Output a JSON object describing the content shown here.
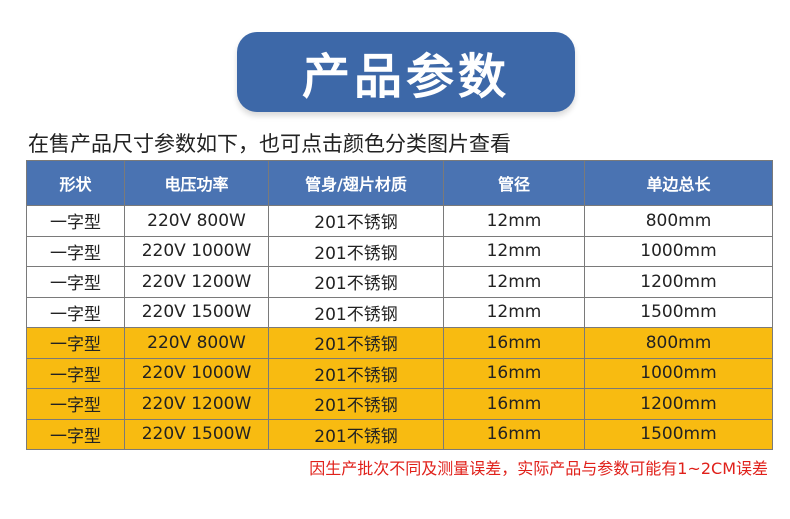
{
  "title": "产品参数",
  "subtitle": "在售产品尺寸参数如下，也可点击颜色分类图片查看",
  "table": {
    "headers": [
      "形状",
      "电压功率",
      "管身/翅片材质",
      "管径",
      "单边总长"
    ],
    "rows": [
      {
        "shape": "一字型",
        "power": "220V 800W",
        "material": "201不锈钢",
        "diameter": "12mm",
        "length": "800mm",
        "highlight": false
      },
      {
        "shape": "一字型",
        "power": "220V 1000W",
        "material": "201不锈钢",
        "diameter": "12mm",
        "length": "1000mm",
        "highlight": false
      },
      {
        "shape": "一字型",
        "power": "220V 1200W",
        "material": "201不锈钢",
        "diameter": "12mm",
        "length": "1200mm",
        "highlight": false
      },
      {
        "shape": "一字型",
        "power": "220V 1500W",
        "material": "201不锈钢",
        "diameter": "12mm",
        "length": "1500mm",
        "highlight": false
      },
      {
        "shape": "一字型",
        "power": "220V 800W",
        "material": "201不锈钢",
        "diameter": "16mm",
        "length": "800mm",
        "highlight": true
      },
      {
        "shape": "一字型",
        "power": "220V 1000W",
        "material": "201不锈钢",
        "diameter": "16mm",
        "length": "1000mm",
        "highlight": true
      },
      {
        "shape": "一字型",
        "power": "220V 1200W",
        "material": "201不锈钢",
        "diameter": "16mm",
        "length": "1200mm",
        "highlight": true
      },
      {
        "shape": "一字型",
        "power": "220V 1500W",
        "material": "201不锈钢",
        "diameter": "16mm",
        "length": "1500mm",
        "highlight": true
      }
    ]
  },
  "footnote": "因生产批次不同及测量误差，实际产品与参数可能有1~2CM误差",
  "colors": {
    "banner": "#3d68a8",
    "header": "#4a73b2",
    "highlight_row": "#f8bb11",
    "footnote": "#e0201a"
  }
}
